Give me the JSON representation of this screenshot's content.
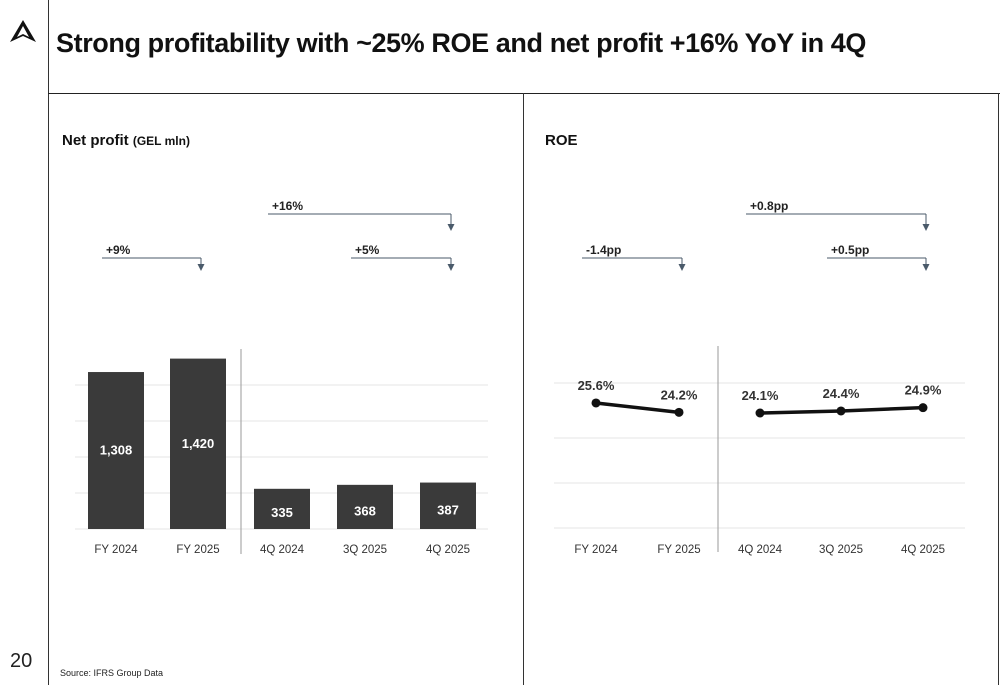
{
  "page_number": "20",
  "title": "Strong profitability with ~25% ROE and net profit +16% YoY in 4Q",
  "source": "Source: IFRS Group Data",
  "chart_data": [
    {
      "type": "bar",
      "title": "Net profit",
      "unit_label": "(GEL mln)",
      "categories": [
        "FY 2024",
        "FY 2025",
        "4Q 2024",
        "3Q 2025",
        "4Q 2025"
      ],
      "values": [
        1308,
        1420,
        335,
        368,
        387
      ],
      "value_labels": [
        "1,308",
        "1,420",
        "335",
        "368",
        "387"
      ],
      "ylim": [
        0,
        1500
      ],
      "grid": true,
      "bar_color": "#3a3a3a",
      "annotations": [
        {
          "label": "+9%",
          "from": "FY 2024",
          "to": "FY 2025"
        },
        {
          "label": "+16%",
          "from": "4Q 2024",
          "to": "4Q 2025"
        },
        {
          "label": "+5%",
          "from": "3Q 2025",
          "to": "4Q 2025"
        }
      ]
    },
    {
      "type": "line",
      "title": "ROE",
      "categories": [
        "FY 2024",
        "FY 2025",
        "4Q 2024",
        "3Q 2025",
        "4Q 2025"
      ],
      "values": [
        25.6,
        24.2,
        24.1,
        24.4,
        24.9
      ],
      "value_labels": [
        "25.6%",
        "24.2%",
        "24.1%",
        "24.4%",
        "24.9%"
      ],
      "grid": true,
      "line_color": "#111111",
      "annotations": [
        {
          "label": "-1.4pp",
          "from": "FY 2024",
          "to": "FY 2025"
        },
        {
          "label": "+0.8pp",
          "from": "4Q 2024",
          "to": "4Q 2025"
        },
        {
          "label": "+0.5pp",
          "from": "3Q 2025",
          "to": "4Q 2025"
        }
      ]
    }
  ],
  "colors": {
    "arrow": "#4a5a6a",
    "grid": "#e6e6e6"
  }
}
